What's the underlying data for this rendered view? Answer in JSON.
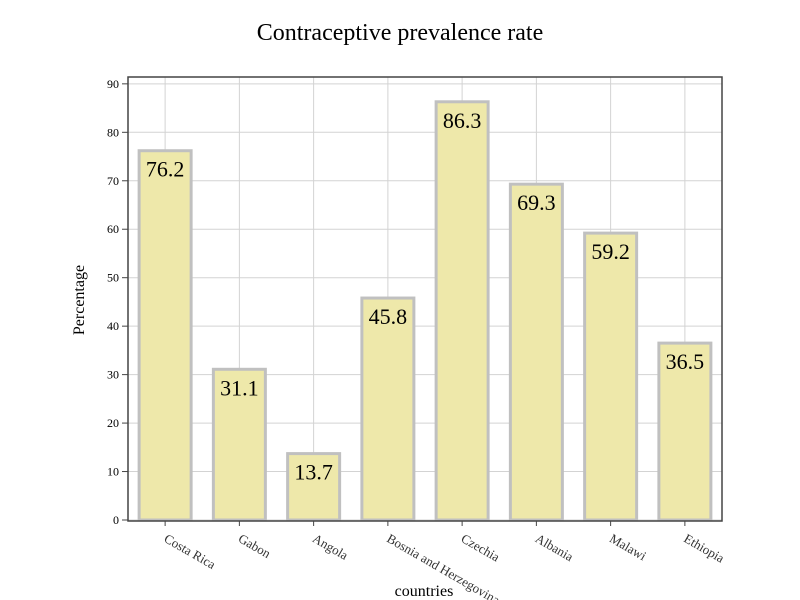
{
  "chart_data": {
    "type": "bar",
    "title": "Contraceptive prevalence rate",
    "xlabel": "countries",
    "ylabel": "Percentage",
    "categories": [
      "Costa Rica",
      "Gabon",
      "Angola",
      "Bosnia and Herzegovina",
      "Czechia",
      "Albania",
      "Malawi",
      "Ethiopia"
    ],
    "values": [
      76.2,
      31.1,
      13.7,
      45.8,
      86.3,
      69.3,
      59.2,
      36.5
    ],
    "data_labels": [
      "76.2",
      "31.1",
      "13.7",
      "45.8",
      "86.3",
      "69.3",
      "59.2",
      "36.5"
    ],
    "yticks": [
      "0",
      "10",
      "20",
      "30",
      "40",
      "50",
      "60",
      "70",
      "80",
      "90"
    ],
    "ylim": [
      0,
      91
    ],
    "grid": true,
    "bar_fill": "#eee8aa",
    "bar_stroke": "#c0c0c0"
  }
}
